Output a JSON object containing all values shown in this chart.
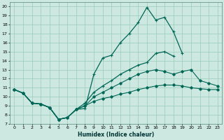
{
  "xlabel": "Humidex (Indice chaleur)",
  "xlim": [
    -0.5,
    23.5
  ],
  "ylim": [
    7,
    20.5
  ],
  "yticks": [
    7,
    8,
    9,
    10,
    11,
    12,
    13,
    14,
    15,
    16,
    17,
    18,
    19,
    20
  ],
  "xticks": [
    0,
    1,
    2,
    3,
    4,
    5,
    6,
    7,
    8,
    9,
    10,
    11,
    12,
    13,
    14,
    15,
    16,
    17,
    18,
    19,
    20,
    21,
    22,
    23
  ],
  "background_color": "#cce8e0",
  "grid_color": "#99ccbb",
  "line_color": "#006655",
  "line1_x": [
    0,
    1,
    2,
    3,
    4,
    5,
    6,
    7,
    8,
    9,
    10,
    11,
    12,
    13,
    14,
    15,
    16,
    17,
    18,
    19,
    20,
    21,
    22,
    23
  ],
  "line1_y": [
    10.8,
    10.4,
    9.3,
    9.2,
    8.8,
    7.5,
    7.7,
    8.6,
    8.7,
    12.5,
    14.3,
    14.6,
    16.0,
    17.0,
    18.2,
    19.9,
    18.5,
    18.8,
    17.2,
    14.8,
    null,
    null,
    null,
    null
  ],
  "line2_x": [
    0,
    1,
    2,
    3,
    4,
    5,
    6,
    7,
    8,
    9,
    10,
    11,
    12,
    13,
    14,
    15,
    16,
    17,
    18,
    19,
    20,
    21,
    22,
    23
  ],
  "line2_y": [
    10.8,
    10.4,
    9.3,
    9.2,
    8.8,
    7.5,
    7.7,
    8.6,
    9.3,
    10.5,
    11.2,
    11.8,
    12.5,
    13.0,
    13.5,
    13.8,
    14.8,
    15.0,
    14.5,
    null,
    null,
    null,
    null,
    null
  ],
  "line3_x": [
    0,
    1,
    2,
    3,
    4,
    5,
    6,
    7,
    8,
    9,
    10,
    11,
    12,
    13,
    14,
    15,
    16,
    17,
    18,
    19,
    20,
    21,
    22,
    23
  ],
  "line3_y": [
    10.8,
    10.4,
    9.3,
    9.2,
    8.8,
    7.5,
    7.7,
    8.6,
    9.0,
    10.0,
    10.5,
    11.0,
    11.5,
    12.0,
    12.5,
    12.8,
    13.0,
    12.8,
    12.5,
    12.8,
    13.0,
    11.8,
    11.5,
    11.2
  ],
  "line4_x": [
    0,
    1,
    2,
    3,
    4,
    5,
    6,
    7,
    8,
    9,
    10,
    11,
    12,
    13,
    14,
    15,
    16,
    17,
    18,
    19,
    20,
    21,
    22,
    23
  ],
  "line4_y": [
    10.8,
    10.4,
    9.3,
    9.2,
    8.8,
    7.5,
    7.7,
    8.6,
    9.0,
    9.5,
    9.8,
    10.0,
    10.3,
    10.5,
    10.8,
    11.0,
    11.2,
    11.3,
    11.3,
    11.2,
    11.0,
    10.9,
    10.8,
    10.8
  ]
}
